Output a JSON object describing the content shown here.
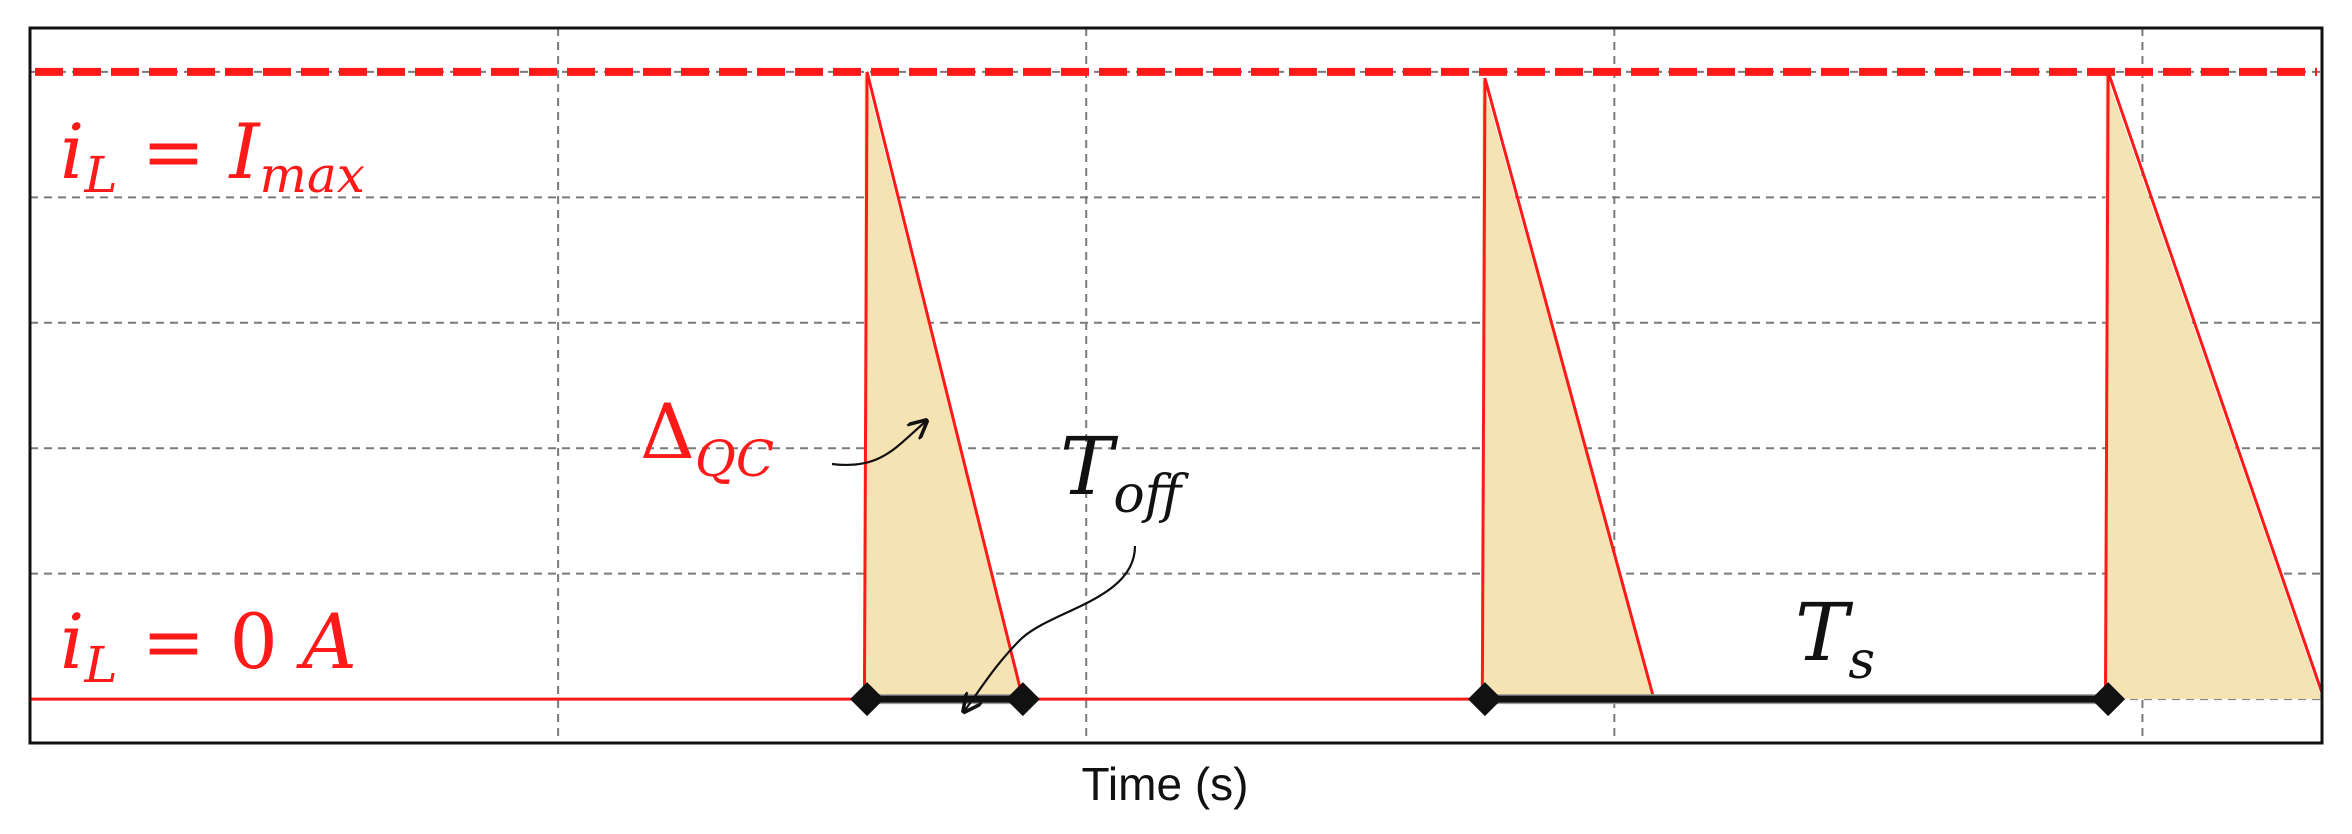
{
  "chart_data": {
    "type": "line",
    "title": "",
    "xlabel": "Time (s)",
    "ylabel": "",
    "grid": true,
    "x_grid_lines": [
      0,
      1,
      2,
      3,
      4
    ],
    "y_grid_lines": [
      0,
      1,
      2,
      3,
      4,
      5
    ],
    "xlim": [
      0,
      4.34
    ],
    "ylim": [
      -0.35,
      5.35
    ],
    "colors": {
      "current": "#ff1a1a",
      "fill": "#f5e3b3",
      "frame": "#111111",
      "grid": "#7a7a7a",
      "interval": "#111111",
      "interval_gray": "#9a9a9a"
    },
    "levels": {
      "i_max": 5,
      "zero": 0
    },
    "series": [
      {
        "name": "",
        "x": [
          0,
          1.58,
          1.585,
          1.88,
          2.75,
          2.755,
          3.075,
          3.93,
          3.935,
          4.34
        ],
        "y": [
          0,
          0,
          5,
          0,
          0,
          4.95,
          0,
          0,
          5,
          0.05
        ]
      }
    ],
    "shaded_regions": [
      {
        "x_start": 1.58,
        "x_end": 1.88,
        "y_top": 5
      },
      {
        "x_start": 2.75,
        "x_end": 3.075,
        "y_top": 4.95
      },
      {
        "x_start": 3.93,
        "x_end": 4.34,
        "y_top": 5
      }
    ],
    "intervals": [
      {
        "label": "Toff",
        "x_start": 1.585,
        "x_end": 1.88
      },
      {
        "label": "Ts",
        "x_start": 2.755,
        "x_end": 3.935
      }
    ],
    "annotations": {
      "i_max": {
        "base": "i",
        "sub": "L",
        "mid": " = ",
        "base2": "I",
        "sub2": "max"
      },
      "zero": {
        "base": "i",
        "sub": "L",
        "mid": " = 0 ",
        "base2": "A"
      },
      "delta_qc": {
        "base": "Δ",
        "sub": "QC"
      },
      "t_off": {
        "base": "T",
        "sub": "off"
      },
      "t_s": {
        "base": "T",
        "sub": "s"
      }
    }
  }
}
